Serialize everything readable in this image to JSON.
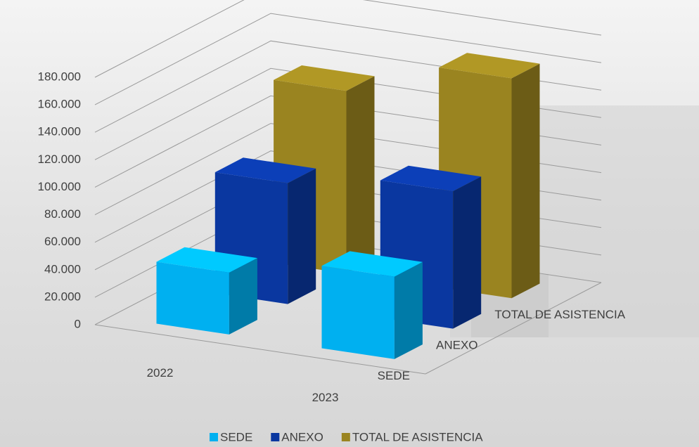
{
  "chart_data": {
    "type": "bar3d",
    "categories": [
      "2022",
      "2023"
    ],
    "series": [
      {
        "name": "SEDE",
        "color": "#00b0f0",
        "values": [
          45000,
          60000
        ]
      },
      {
        "name": "ANEXO",
        "color": "#0a37a0",
        "values": [
          88000,
          100000
        ]
      },
      {
        "name": "TOTAL DE ASISTENCIA",
        "color": "#9a8420",
        "values": [
          133000,
          160000
        ]
      }
    ],
    "ylim": [
      0,
      180000
    ],
    "yticks": [
      0,
      {
        "value": 20000,
        "label": "20.000"
      },
      {
        "value": 40000,
        "label": "40.000"
      },
      {
        "value": 60000,
        "label": "60.000"
      },
      {
        "value": 80000,
        "label": "80.000"
      },
      {
        "value": 100000,
        "label": "100.000"
      },
      {
        "value": 120000,
        "label": "120.000"
      },
      {
        "value": 140000,
        "label": "140.000"
      },
      {
        "value": 160000,
        "label": "160.000"
      },
      {
        "value": 180000,
        "label": "180.000"
      }
    ],
    "grid": true,
    "legend": "bottom"
  }
}
